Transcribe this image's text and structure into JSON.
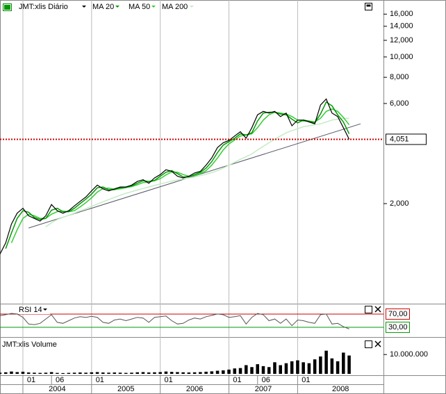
{
  "chart_data": [
    {
      "type": "line",
      "log": true,
      "x": [
        "2003-09",
        "2003-10",
        "2003-11",
        "2003-12",
        "2004-01",
        "2004-02",
        "2004-03",
        "2004-04",
        "2004-05",
        "2004-06",
        "2004-07",
        "2004-08",
        "2004-09",
        "2004-10",
        "2004-11",
        "2004-12",
        "2005-01",
        "2005-02",
        "2005-03",
        "2005-04",
        "2005-05",
        "2005-06",
        "2005-07",
        "2005-08",
        "2005-09",
        "2005-10",
        "2005-11",
        "2005-12",
        "2006-01",
        "2006-02",
        "2006-03",
        "2006-04",
        "2006-05",
        "2006-06",
        "2006-07",
        "2006-08",
        "2006-09",
        "2006-10",
        "2006-11",
        "2006-12",
        "2007-01",
        "2007-02",
        "2007-03",
        "2007-04",
        "2007-05",
        "2007-06",
        "2007-07",
        "2007-08",
        "2007-09",
        "2007-10",
        "2007-11",
        "2007-12",
        "2008-01",
        "2008-02",
        "2008-03",
        "2008-04",
        "2008-05",
        "2008-06",
        "2008-07",
        "2008-08",
        "2008-09",
        "2008-10"
      ],
      "xlim": [
        "2003-09",
        "2009-04"
      ],
      "xticks": [
        {
          "value": "2004-01",
          "label": "01"
        },
        {
          "value": "2004-06",
          "label": "06"
        },
        {
          "value": "2005-01",
          "label": "01"
        },
        {
          "value": "2006-01",
          "label": "01"
        },
        {
          "value": "2007-01",
          "label": "01"
        },
        {
          "value": "2007-06",
          "label": "06"
        },
        {
          "value": "2008-01",
          "label": "01"
        }
      ],
      "years": [
        {
          "value": "2004-01",
          "label": "2004"
        },
        {
          "value": "2005-01",
          "label": "2005"
        },
        {
          "value": "2006-01",
          "label": "2006"
        },
        {
          "value": "2007-01",
          "label": "2007"
        },
        {
          "value": "2008-01",
          "label": "2008"
        }
      ],
      "ylim": [
        667,
        18680
      ],
      "yticks": [
        {
          "value": 2000,
          "label": "2,000"
        },
        {
          "value": 6000,
          "label": "6,000"
        },
        {
          "value": 8000,
          "label": "8,000"
        },
        {
          "value": 10000,
          "label": "10,000"
        },
        {
          "value": 12000,
          "label": "12,000"
        },
        {
          "value": 14000,
          "label": "14,000"
        },
        {
          "value": 16000,
          "label": "16,000"
        }
      ],
      "series": [
        {
          "name": "JMT:xlis Diário",
          "color": "#000000",
          "values": [
            1150,
            1300,
            1600,
            1800,
            1900,
            1750,
            1700,
            1650,
            1750,
            1980,
            1850,
            1800,
            1850,
            1950,
            2050,
            2150,
            2300,
            2450,
            2350,
            2300,
            2350,
            2400,
            2400,
            2450,
            2550,
            2600,
            2500,
            2650,
            2750,
            2900,
            2850,
            2700,
            2650,
            2700,
            2800,
            2850,
            3050,
            3300,
            3700,
            3900,
            4000,
            4200,
            4400,
            4100,
            4600,
            5300,
            5500,
            5400,
            5500,
            5200,
            5400,
            4700,
            5000,
            5000,
            4900,
            4800,
            5900,
            6300,
            5400,
            5200,
            4600,
            4051
          ]
        },
        {
          "name": "MA 20",
          "color": "#009900",
          "values": [
            null,
            1220,
            1450,
            1700,
            1850,
            1820,
            1720,
            1680,
            1700,
            1860,
            1900,
            1830,
            1830,
            1900,
            2000,
            2100,
            2220,
            2380,
            2400,
            2330,
            2330,
            2380,
            2400,
            2430,
            2500,
            2570,
            2550,
            2580,
            2700,
            2820,
            2870,
            2780,
            2680,
            2680,
            2750,
            2820,
            2950,
            3170,
            3500,
            3800,
            3950,
            4100,
            4300,
            4250,
            4350,
            4950,
            5400,
            5450,
            5450,
            5350,
            5300,
            5050,
            4850,
            5000,
            4950,
            4850,
            5350,
            6100,
            5850,
            5300,
            4900,
            4300
          ]
        },
        {
          "name": "MA 50",
          "color": "#33cc33",
          "values": [
            null,
            null,
            1300,
            1500,
            1700,
            1780,
            1750,
            1700,
            1700,
            1780,
            1830,
            1840,
            1830,
            1850,
            1930,
            2020,
            2130,
            2270,
            2360,
            2370,
            2340,
            2350,
            2380,
            2410,
            2460,
            2520,
            2540,
            2570,
            2630,
            2740,
            2830,
            2820,
            2750,
            2700,
            2720,
            2780,
            2870,
            3050,
            3300,
            3600,
            3850,
            4020,
            4200,
            4250,
            4300,
            4600,
            5000,
            5300,
            5450,
            5400,
            5350,
            5200,
            5000,
            4950,
            4950,
            4900,
            5100,
            5500,
            5650,
            5500,
            5150,
            4750
          ]
        },
        {
          "name": "MA 200",
          "color": "#c4ecc4",
          "values": [
            null,
            null,
            null,
            null,
            null,
            null,
            null,
            null,
            1550,
            1620,
            1680,
            1720,
            1760,
            1800,
            1850,
            1890,
            1940,
            1990,
            2040,
            2090,
            2140,
            2190,
            2240,
            2280,
            2320,
            2360,
            2400,
            2440,
            2480,
            2520,
            2560,
            2590,
            2620,
            2650,
            2680,
            2720,
            2760,
            2810,
            2870,
            2950,
            3050,
            3150,
            3250,
            3350,
            3450,
            3600,
            3750,
            3900,
            4050,
            4200,
            4350,
            4450,
            4550,
            4650,
            4700,
            4750,
            4800,
            4900,
            5000,
            5050,
            5100,
            5100
          ]
        }
      ],
      "trendline": {
        "x": [
          "2004-02",
          "2008-12"
        ],
        "values": [
          1530,
          4800
        ],
        "color": "#555566"
      },
      "hline": {
        "value": 4051,
        "label": "4,051",
        "color": "#cc0000"
      },
      "grid": true
    },
    {
      "type": "line",
      "title": "RSI 14",
      "values": [
        65,
        68,
        72,
        70,
        60,
        40,
        38,
        42,
        55,
        68,
        45,
        42,
        50,
        58,
        62,
        60,
        63,
        60,
        45,
        42,
        52,
        55,
        50,
        55,
        60,
        58,
        45,
        60,
        62,
        64,
        50,
        40,
        42,
        52,
        58,
        55,
        62,
        66,
        70,
        68,
        60,
        62,
        65,
        40,
        60,
        72,
        68,
        50,
        55,
        42,
        55,
        35,
        52,
        50,
        45,
        42,
        68,
        70,
        40,
        42,
        32,
        25
      ],
      "color": "#555555",
      "ylim": [
        5,
        95
      ],
      "yticks": [
        {
          "value": 70,
          "label": "70,00",
          "color": "#cc0000"
        },
        {
          "value": 30,
          "label": "30,00",
          "color": "#009900"
        }
      ]
    },
    {
      "type": "bar",
      "title": "JMT:xlis Volume",
      "values": [
        600000,
        800000,
        1200000,
        900000,
        1100000,
        700000,
        600000,
        500000,
        600000,
        900000,
        500000,
        400000,
        500000,
        600000,
        700000,
        600000,
        800000,
        900000,
        700000,
        600000,
        700000,
        600000,
        500000,
        600000,
        800000,
        900000,
        700000,
        800000,
        900000,
        1200000,
        1000000,
        900000,
        800000,
        700000,
        800000,
        900000,
        1100000,
        1300000,
        1600000,
        1800000,
        2200000,
        2800000,
        3000000,
        4500000,
        3500000,
        5000000,
        4000000,
        3500000,
        6000000,
        4500000,
        5500000,
        6500000,
        7000000,
        6000000,
        5500000,
        7500000,
        9000000,
        12000000,
        8000000,
        6500000,
        11000000,
        9500000
      ],
      "color": "#000000",
      "ylim": [
        0,
        18000000
      ],
      "yticks": [
        {
          "value": 10000000,
          "label": "10.000.000"
        }
      ]
    }
  ]
}
